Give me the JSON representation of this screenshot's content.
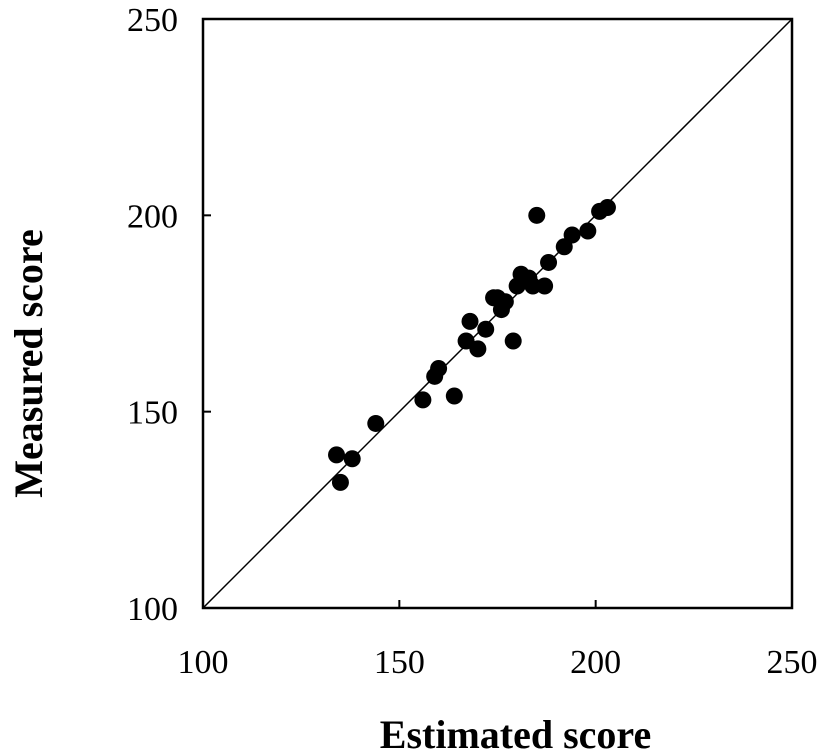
{
  "chart_data": {
    "type": "scatter",
    "title": "",
    "xlabel": "Estimated score",
    "ylabel": "Measured score",
    "xlim": [
      100,
      250
    ],
    "ylim": [
      100,
      250
    ],
    "xticks": [
      100,
      150,
      200,
      250
    ],
    "yticks": [
      100,
      150,
      200,
      250
    ],
    "grid": false,
    "reference_line": "y = x",
    "marker_color": "#000000",
    "series": [
      {
        "points": [
          {
            "x": 134,
            "y": 139
          },
          {
            "x": 135,
            "y": 132
          },
          {
            "x": 138,
            "y": 138
          },
          {
            "x": 144,
            "y": 147
          },
          {
            "x": 156,
            "y": 153
          },
          {
            "x": 159,
            "y": 159
          },
          {
            "x": 160,
            "y": 161
          },
          {
            "x": 164,
            "y": 154
          },
          {
            "x": 167,
            "y": 168
          },
          {
            "x": 168,
            "y": 173
          },
          {
            "x": 170,
            "y": 166
          },
          {
            "x": 172,
            "y": 171
          },
          {
            "x": 174,
            "y": 179
          },
          {
            "x": 175,
            "y": 179
          },
          {
            "x": 176,
            "y": 176
          },
          {
            "x": 177,
            "y": 178
          },
          {
            "x": 179,
            "y": 168
          },
          {
            "x": 180,
            "y": 182
          },
          {
            "x": 181,
            "y": 185
          },
          {
            "x": 183,
            "y": 184
          },
          {
            "x": 184,
            "y": 182
          },
          {
            "x": 185,
            "y": 200
          },
          {
            "x": 187,
            "y": 182
          },
          {
            "x": 188,
            "y": 188
          },
          {
            "x": 192,
            "y": 192
          },
          {
            "x": 194,
            "y": 195
          },
          {
            "x": 198,
            "y": 196
          },
          {
            "x": 201,
            "y": 201
          },
          {
            "x": 203,
            "y": 202
          }
        ]
      }
    ]
  }
}
